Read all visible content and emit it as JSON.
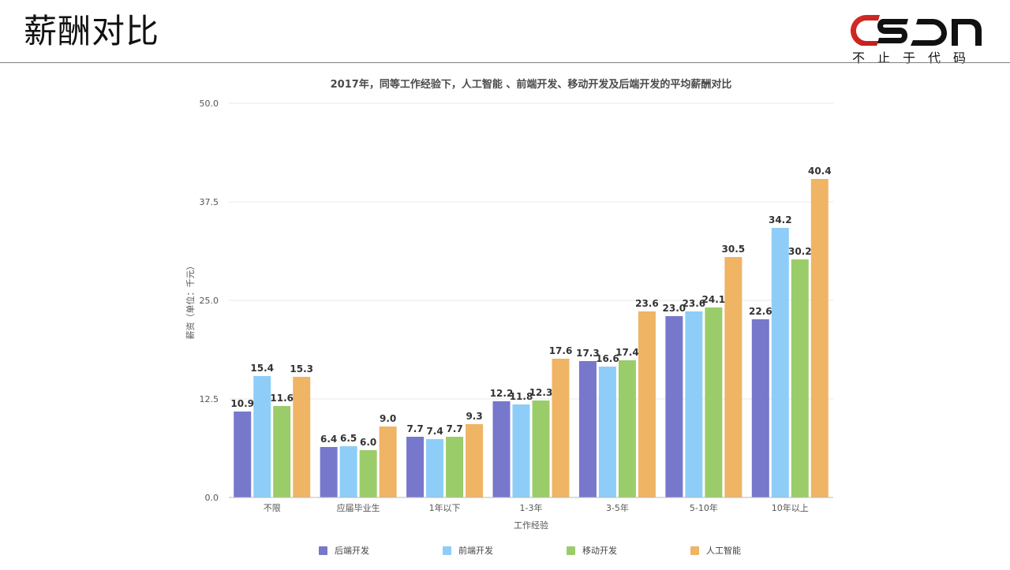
{
  "header": {
    "title": "薪酬对比",
    "brand_logo_text": "CSDN",
    "brand_slogan": "不止于代码"
  },
  "chart_data": {
    "type": "bar",
    "title": "2017年，同等工作经验下，人工智能 、前端开发、移动开发及后端开发的平均薪酬对比",
    "xlabel": "工作经验",
    "ylabel": "薪资（单位：千元）",
    "categories": [
      "不限",
      "应届毕业生",
      "1年以下",
      "1-3年",
      "3-5年",
      "5-10年",
      "10年以上"
    ],
    "ylim": [
      0,
      50
    ],
    "yticks": [
      "0.0",
      "12.5",
      "25.0",
      "37.5",
      "50.0"
    ],
    "grid": true,
    "legend_position": "bottom",
    "series": [
      {
        "name": "后端开发",
        "color": "#7777cc",
        "values": [
          10.9,
          6.4,
          7.7,
          12.2,
          17.3,
          23.0,
          22.6
        ],
        "labels": [
          "10.9",
          "6.4",
          "7.7",
          "12.2",
          "17.3",
          "23.0",
          "22.6"
        ]
      },
      {
        "name": "前端开发",
        "color": "#8ecdf8",
        "values": [
          15.4,
          6.5,
          7.4,
          11.8,
          16.6,
          23.6,
          34.2
        ],
        "labels": [
          "15.4",
          "6.5",
          "7.4",
          "11.8",
          "16.6",
          "23.6",
          "34.2"
        ]
      },
      {
        "name": "移动开发",
        "color": "#9bcc6a",
        "values": [
          11.6,
          6.0,
          7.7,
          12.3,
          17.4,
          24.1,
          30.2
        ],
        "labels": [
          "11.6",
          "6.0",
          "7.7",
          "12.3",
          "17.4",
          "24.1",
          "30.2"
        ]
      },
      {
        "name": "人工智能",
        "color": "#f0b465",
        "values": [
          15.3,
          9.0,
          9.3,
          17.6,
          23.6,
          30.5,
          40.4
        ],
        "labels": [
          "15.3",
          "9.0",
          "9.3",
          "17.6",
          "23.6",
          "30.5",
          "40.4"
        ]
      }
    ],
    "colors": {
      "grid": "#e9e9e9",
      "axis": "#b8b8b8",
      "text": "#555555"
    }
  }
}
